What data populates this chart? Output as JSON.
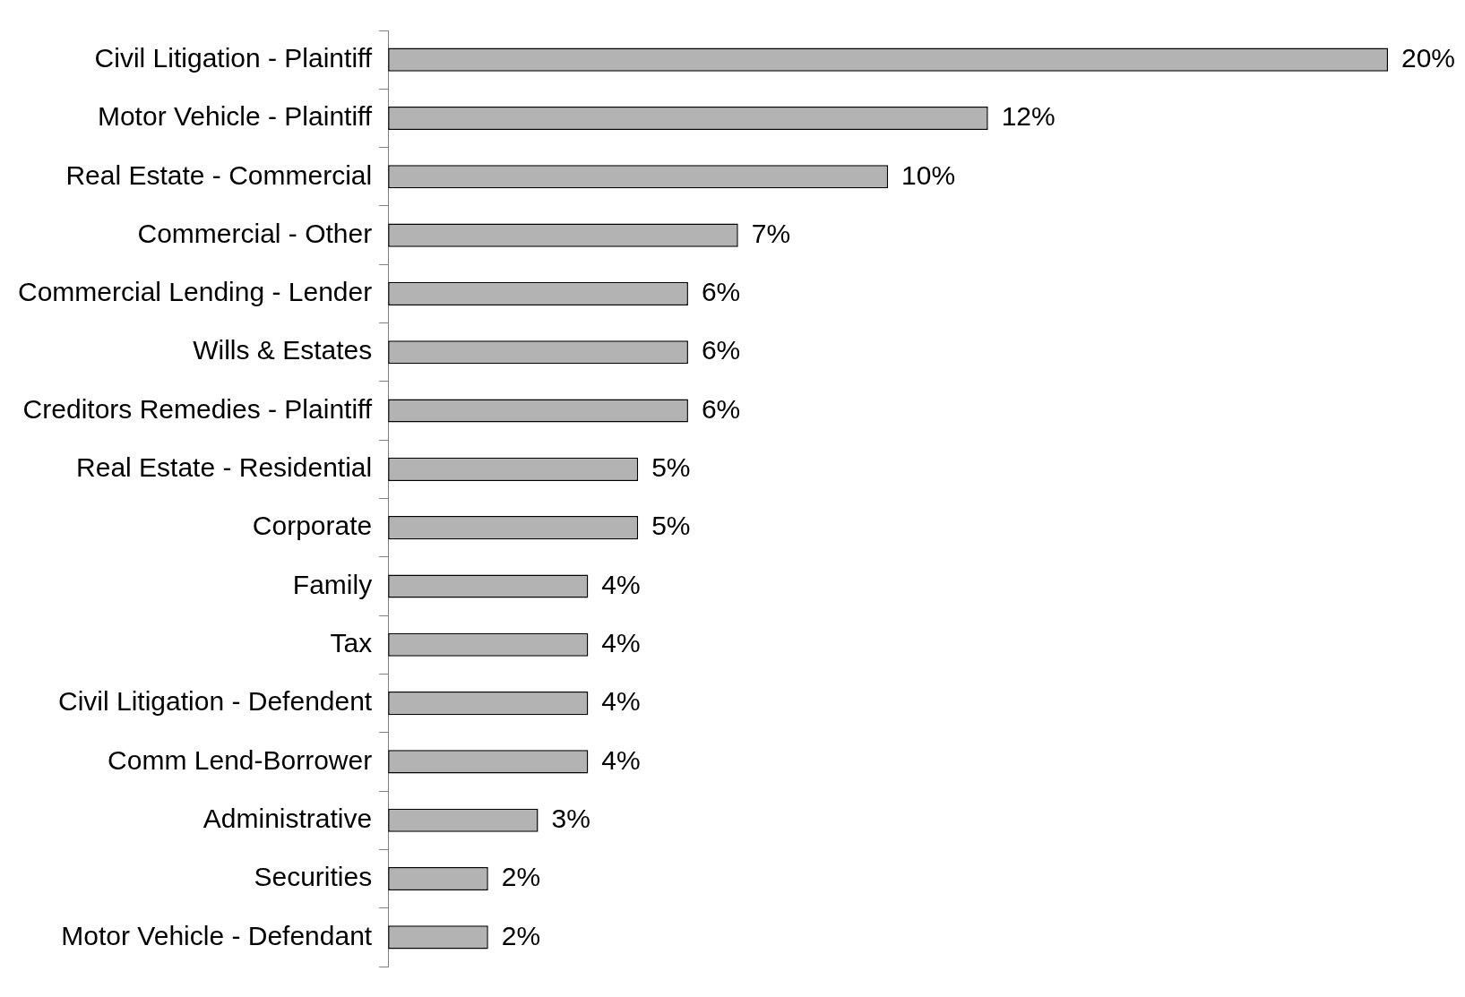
{
  "chart_data": {
    "type": "bar",
    "orientation": "horizontal",
    "categories": [
      "Civil Litigation - Plaintiff",
      "Motor Vehicle - Plaintiff",
      "Real Estate - Commercial",
      "Commercial - Other",
      "Commercial Lending - Lender",
      "Wills & Estates",
      "Creditors Remedies - Plaintiff",
      "Real Estate - Residential",
      "Corporate",
      "Family",
      "Tax",
      "Civil Litigation - Defendent",
      "Comm Lend-Borrower",
      "Administrative",
      "Securities",
      "Motor Vehicle - Defendant"
    ],
    "values": [
      20,
      12,
      10,
      7,
      6,
      6,
      6,
      5,
      5,
      4,
      4,
      4,
      4,
      3,
      2,
      2
    ],
    "value_labels": [
      "20%",
      "12%",
      "10%",
      "7%",
      "6%",
      "6%",
      "6%",
      "5%",
      "5%",
      "4%",
      "4%",
      "4%",
      "4%",
      "3%",
      "2%",
      "2%"
    ],
    "color": "#b3b3b3",
    "legend": false,
    "tick_labels": "y"
  }
}
